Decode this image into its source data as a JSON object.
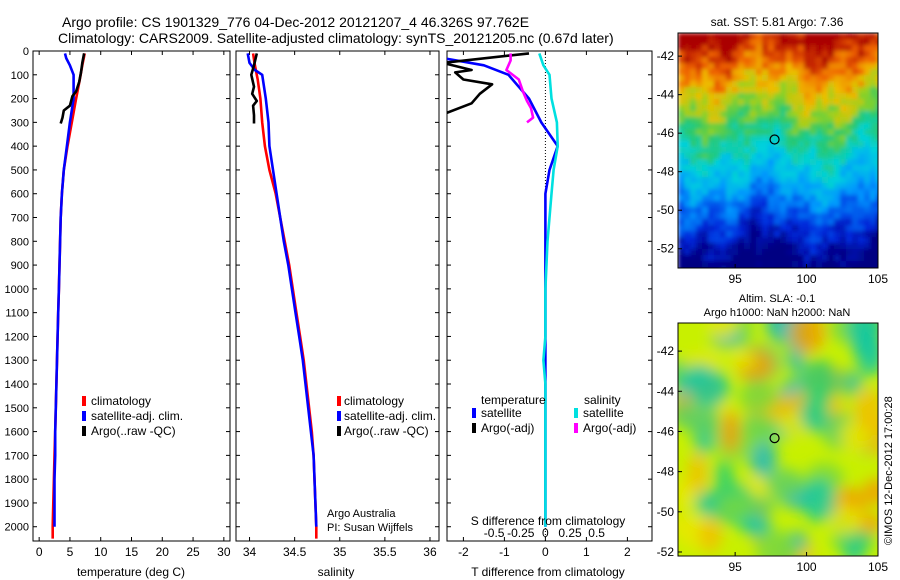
{
  "header": {
    "line1": "Argo profile: CS 1901329_776 04-Dec-2012 20121207_4 46.326S 97.762E",
    "line2": "Climatology: CARS2009. Satellite-adjusted climatology: synTS_20121205.nc (0.67d later)"
  },
  "chart_data": [
    {
      "type": "line",
      "id": "temperature",
      "xlabel": "temperature (deg C)",
      "xlim": [
        -1,
        31
      ],
      "xticks": [
        0,
        5,
        10,
        15,
        20,
        25,
        30
      ],
      "ylim": [
        0,
        2060
      ],
      "yticks": [
        0,
        100,
        200,
        300,
        400,
        500,
        600,
        700,
        800,
        900,
        1000,
        1100,
        1200,
        1300,
        1400,
        1500,
        1600,
        1700,
        1800,
        1900,
        2000
      ],
      "legend": [
        "climatology",
        "satellite-adj. clim.",
        "Argo(..raw -QC)"
      ],
      "series": [
        {
          "name": "climatology",
          "color": "#ff0000",
          "points": [
            [
              7.4,
              10
            ],
            [
              7.0,
              60
            ],
            [
              6.6,
              120
            ],
            [
              6.0,
              200
            ],
            [
              5.3,
              300
            ],
            [
              4.6,
              400
            ],
            [
              4.0,
              500
            ],
            [
              3.7,
              600
            ],
            [
              3.5,
              700
            ],
            [
              3.4,
              800
            ],
            [
              3.3,
              900
            ],
            [
              3.2,
              1000
            ],
            [
              3.1,
              1100
            ],
            [
              3.0,
              1200
            ],
            [
              2.9,
              1300
            ],
            [
              2.8,
              1400
            ],
            [
              2.7,
              1500
            ],
            [
              2.6,
              1600
            ],
            [
              2.5,
              1700
            ],
            [
              2.4,
              1800
            ],
            [
              2.3,
              1900
            ],
            [
              2.2,
              2000
            ],
            [
              2.2,
              2050
            ]
          ]
        },
        {
          "name": "satellite-adj. clim.",
          "color": "#0000ff",
          "points": [
            [
              4.2,
              10
            ],
            [
              4.4,
              30
            ],
            [
              5.0,
              60
            ],
            [
              5.6,
              100
            ],
            [
              5.6,
              200
            ],
            [
              5.0,
              300
            ],
            [
              4.5,
              400
            ],
            [
              4.0,
              500
            ],
            [
              3.7,
              600
            ],
            [
              3.5,
              700
            ],
            [
              3.4,
              800
            ],
            [
              3.3,
              900
            ],
            [
              3.2,
              1000
            ],
            [
              3.1,
              1100
            ],
            [
              3.0,
              1200
            ],
            [
              2.9,
              1300
            ],
            [
              2.8,
              1400
            ],
            [
              2.7,
              1500
            ],
            [
              2.6,
              1600
            ],
            [
              2.6,
              1700
            ],
            [
              2.5,
              1800
            ],
            [
              2.5,
              1900
            ],
            [
              2.5,
              2000
            ]
          ]
        },
        {
          "name": "Argo(..raw -QC)",
          "color": "#000000",
          "points": [
            [
              7.3,
              10
            ],
            [
              7.0,
              50
            ],
            [
              6.8,
              90
            ],
            [
              6.5,
              130
            ],
            [
              6.0,
              170
            ],
            [
              5.4,
              190
            ],
            [
              5.0,
              230
            ],
            [
              4.0,
              250
            ],
            [
              3.8,
              280
            ],
            [
              3.5,
              305
            ]
          ]
        }
      ]
    },
    {
      "type": "line",
      "id": "salinity",
      "xlabel": "salinity",
      "xlim": [
        33.85,
        36.1
      ],
      "xticks": [
        34,
        34.5,
        35,
        35.5,
        36
      ],
      "ylim": [
        0,
        2060
      ],
      "legend": [
        "climatology",
        "satellite-adj. clim.",
        "Argo(..raw -QC)"
      ],
      "annotation": [
        "Argo Australia",
        "PI: Susan Wijffels"
      ],
      "series": [
        {
          "name": "climatology",
          "color": "#ff0000",
          "points": [
            [
              34.04,
              10
            ],
            [
              34.06,
              60
            ],
            [
              34.09,
              120
            ],
            [
              34.12,
              200
            ],
            [
              34.14,
              300
            ],
            [
              34.17,
              400
            ],
            [
              34.22,
              500
            ],
            [
              34.29,
              600
            ],
            [
              34.34,
              700
            ],
            [
              34.39,
              800
            ],
            [
              34.44,
              900
            ],
            [
              34.48,
              1000
            ],
            [
              34.52,
              1100
            ],
            [
              34.56,
              1200
            ],
            [
              34.6,
              1300
            ],
            [
              34.63,
              1400
            ],
            [
              34.66,
              1500
            ],
            [
              34.69,
              1600
            ],
            [
              34.71,
              1700
            ],
            [
              34.72,
              1800
            ],
            [
              34.73,
              1900
            ],
            [
              34.74,
              2000
            ],
            [
              34.74,
              2050
            ]
          ]
        },
        {
          "name": "satellite-adj. clim.",
          "color": "#0000ff",
          "points": [
            [
              33.98,
              10
            ],
            [
              34.0,
              50
            ],
            [
              34.06,
              80
            ],
            [
              34.14,
              100
            ],
            [
              34.18,
              200
            ],
            [
              34.21,
              300
            ],
            [
              34.22,
              400
            ],
            [
              34.26,
              500
            ],
            [
              34.3,
              600
            ],
            [
              34.34,
              700
            ],
            [
              34.38,
              800
            ],
            [
              34.43,
              900
            ],
            [
              34.47,
              1000
            ],
            [
              34.51,
              1100
            ],
            [
              34.55,
              1200
            ],
            [
              34.59,
              1300
            ],
            [
              34.62,
              1400
            ],
            [
              34.65,
              1500
            ],
            [
              34.68,
              1600
            ],
            [
              34.71,
              1700
            ],
            [
              34.72,
              1800
            ],
            [
              34.73,
              1900
            ],
            [
              34.74,
              2000
            ]
          ]
        },
        {
          "name": "Argo(..raw -QC)",
          "color": "#000000",
          "points": [
            [
              34.08,
              10
            ],
            [
              34.05,
              60
            ],
            [
              34.02,
              100
            ],
            [
              34.05,
              150
            ],
            [
              34.03,
              180
            ],
            [
              34.08,
              210
            ],
            [
              34.04,
              230
            ],
            [
              34.05,
              270
            ],
            [
              34.05,
              305
            ]
          ]
        }
      ]
    },
    {
      "type": "line",
      "id": "difference",
      "xlabel": "T difference from climatology",
      "xlabel_top": "S difference from climatology",
      "xlim": [
        -2.4,
        2.6
      ],
      "xticks": [
        -2,
        -1,
        0,
        1,
        2
      ],
      "xticks_salinity": [
        "-0.5",
        "-0.25",
        "0",
        "0.25",
        "0.5"
      ],
      "ylim": [
        0,
        2060
      ],
      "legend": {
        "temperature": "temperature",
        "salinity": "salinity",
        "t_sat": "satellite",
        "t_argo": "Argo(-adj)",
        "s_sat": "satellite",
        "s_argo": "Argo(-adj)"
      },
      "series": [
        {
          "name": "temperature satellite",
          "color": "#0000ff",
          "points": [
            [
              -3.1,
              10
            ],
            [
              -2.5,
              30
            ],
            [
              -1.5,
              60
            ],
            [
              -0.9,
              100
            ],
            [
              -0.4,
              200
            ],
            [
              -0.1,
              300
            ],
            [
              0.3,
              400
            ],
            [
              0.1,
              500
            ],
            [
              0,
              600
            ],
            [
              0,
              800
            ],
            [
              0,
              1000
            ],
            [
              0,
              1200
            ],
            [
              0,
              1400
            ],
            [
              0,
              1600
            ],
            [
              0,
              1800
            ],
            [
              0,
              2000
            ]
          ]
        },
        {
          "name": "salinity satellite",
          "color": "#00e0e0",
          "points": [
            [
              -0.15,
              10
            ],
            [
              -0.05,
              60
            ],
            [
              0.1,
              100
            ],
            [
              0.15,
              200
            ],
            [
              0.28,
              300
            ],
            [
              0.3,
              400
            ],
            [
              0.2,
              500
            ],
            [
              0.15,
              600
            ],
            [
              0.05,
              800
            ],
            [
              0,
              1000
            ],
            [
              0,
              1200
            ],
            [
              -0.05,
              1300
            ],
            [
              0,
              1400
            ],
            [
              0,
              1600
            ],
            [
              0,
              1800
            ],
            [
              0,
              2000
            ]
          ]
        },
        {
          "name": "temperature Argo(-adj)",
          "color": "#000000",
          "points": [
            [
              -0.4,
              10
            ],
            [
              -2.5,
              50
            ],
            [
              -1.8,
              80
            ],
            [
              -2.2,
              90
            ],
            [
              -2.0,
              120
            ],
            [
              -1.3,
              140
            ],
            [
              -1.6,
              180
            ],
            [
              -1.8,
              220
            ],
            [
              -2.4,
              260
            ],
            [
              -2.7,
              300
            ]
          ]
        },
        {
          "name": "salinity Argo(-adj)",
          "color": "#ff00ff",
          "points": [
            [
              -0.85,
              10
            ],
            [
              -0.85,
              40
            ],
            [
              -0.95,
              80
            ],
            [
              -0.65,
              120
            ],
            [
              -0.55,
              170
            ],
            [
              -0.45,
              210
            ],
            [
              -0.35,
              240
            ],
            [
              -0.3,
              280
            ],
            [
              -0.45,
              300
            ]
          ]
        }
      ]
    }
  ],
  "maps": [
    {
      "id": "sst-map",
      "title": "sat. SST: 5.81  Argo: 7.36",
      "yticks": [
        "-42",
        "-44",
        "-46",
        "-48",
        "-50",
        "-52"
      ],
      "xticks": [
        "95",
        "100",
        "105"
      ],
      "lat_range": [
        -53,
        -40.8
      ],
      "lon_range": [
        91,
        105
      ],
      "marker": {
        "lon": 97.76,
        "lat": -46.33
      }
    },
    {
      "id": "sla-map",
      "title": "Altim. SLA: -0.1",
      "subtitle": "Argo h1000: NaN  h2000: NaN",
      "yticks": [
        "-42",
        "-44",
        "-46",
        "-48",
        "-50",
        "-52"
      ],
      "xticks": [
        "95",
        "100",
        "105"
      ],
      "lat_range": [
        -52.2,
        -40.6
      ],
      "lon_range": [
        91,
        105
      ],
      "marker": {
        "lon": 97.76,
        "lat": -46.33
      }
    }
  ],
  "side_label": "©IMOS 12-Dec-2012 17:00:28"
}
